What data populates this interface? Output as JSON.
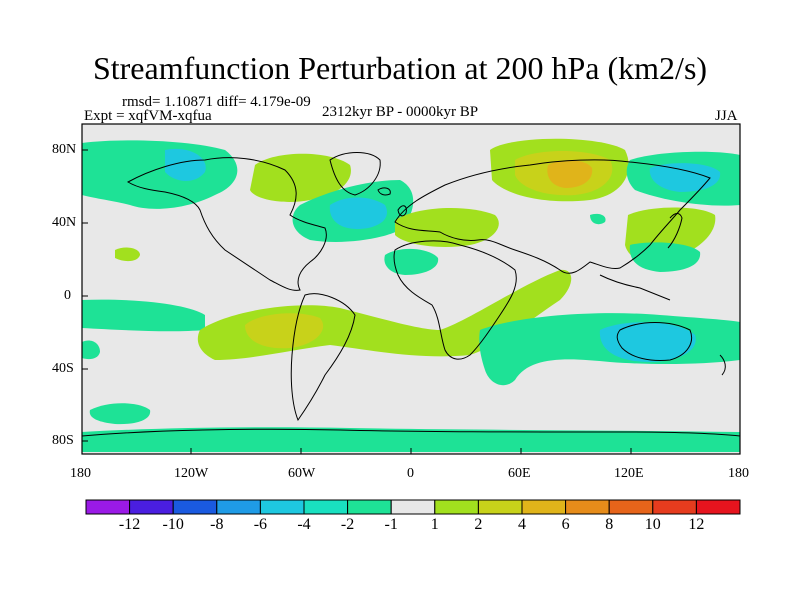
{
  "title": "Streamfunction Perturbation at 200 hPa (km2/s)",
  "stats": "rmsd= 1.10871  diff= 4.179e-09",
  "experiment": "Expt = xqfVM-xqfua",
  "period": "2312kyr BP - 0000kyr BP",
  "season": "JJA",
  "lat_ticks": [
    "80N",
    "40N",
    "0",
    "40S",
    "80S"
  ],
  "lon_ticks": [
    "180",
    "120W",
    "60W",
    "0",
    "60E",
    "120E",
    "180"
  ],
  "colorbar": {
    "labels": [
      "-12",
      "-10",
      "-8",
      "-6",
      "-4",
      "-2",
      "-1",
      "1",
      "2",
      "4",
      "6",
      "8",
      "10",
      "12"
    ],
    "colors": [
      "#9a1ae6",
      "#4a1ee0",
      "#1a5ae0",
      "#1f9be6",
      "#1ec8e0",
      "#19e0c0",
      "#1ee296",
      "#e8e8e8",
      "#a2e01e",
      "#c8d21a",
      "#e0b41a",
      "#e68c1a",
      "#e6641a",
      "#e63c1e",
      "#e6141e"
    ]
  },
  "colors": {
    "background": "#e8e8e8",
    "coast": "#000000"
  }
}
